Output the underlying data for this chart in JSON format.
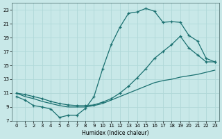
{
  "xlabel": "Humidex (Indice chaleur)",
  "background_color": "#c8e8e8",
  "grid_color": "#b0d8d8",
  "line_color": "#1a7070",
  "xlim": [
    -0.5,
    23.5
  ],
  "ylim": [
    7,
    24
  ],
  "xticks": [
    0,
    1,
    2,
    3,
    4,
    5,
    6,
    7,
    8,
    9,
    10,
    11,
    12,
    13,
    14,
    15,
    16,
    17,
    18,
    19,
    20,
    21,
    22,
    23
  ],
  "yticks": [
    7,
    9,
    11,
    13,
    15,
    17,
    19,
    21,
    23
  ],
  "curve1_x": [
    0,
    1,
    2,
    3,
    4,
    5,
    6,
    7,
    8,
    9,
    10,
    11,
    12,
    13,
    14,
    15,
    16,
    17,
    18,
    19,
    20,
    21,
    22,
    23
  ],
  "curve1_y": [
    10.5,
    10.0,
    9.2,
    9.0,
    8.7,
    7.5,
    7.8,
    7.8,
    8.8,
    10.5,
    14.5,
    18.0,
    20.5,
    22.5,
    22.7,
    23.2,
    22.8,
    21.2,
    21.3,
    21.2,
    19.3,
    18.5,
    16.0,
    15.5
  ],
  "curve2_x": [
    0,
    1,
    2,
    3,
    4,
    5,
    6,
    7,
    8,
    9,
    10,
    11,
    12,
    13,
    14,
    15,
    16,
    17,
    18,
    19,
    20,
    21,
    22,
    23
  ],
  "curve2_y": [
    11.0,
    10.8,
    10.5,
    10.2,
    9.8,
    9.5,
    9.3,
    9.2,
    9.2,
    9.3,
    9.7,
    10.2,
    11.0,
    12.0,
    13.2,
    14.5,
    16.0,
    17.0,
    18.0,
    19.2,
    17.5,
    16.5,
    15.5,
    15.5
  ],
  "curve3_x": [
    0,
    1,
    2,
    3,
    4,
    5,
    6,
    7,
    8,
    9,
    10,
    11,
    12,
    13,
    14,
    15,
    16,
    17,
    18,
    19,
    20,
    21,
    22,
    23
  ],
  "curve3_y": [
    11.0,
    10.5,
    10.2,
    9.8,
    9.5,
    9.2,
    9.0,
    9.0,
    9.0,
    9.2,
    9.5,
    10.0,
    10.5,
    11.0,
    11.5,
    12.0,
    12.5,
    12.8,
    13.0,
    13.3,
    13.5,
    13.7,
    14.0,
    14.3
  ]
}
